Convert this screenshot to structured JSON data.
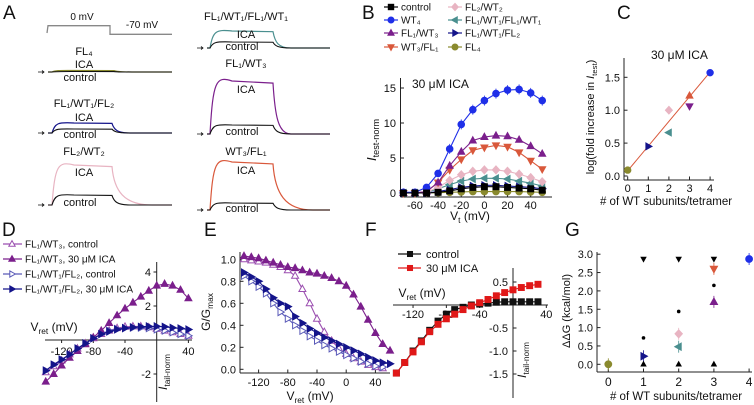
{
  "panel_labels": [
    "A",
    "B",
    "C",
    "D",
    "E",
    "F",
    "G"
  ],
  "chart_data": [
    {
      "panel": "A",
      "type": "traces",
      "protocol": {
        "step_label": "0 mV",
        "hold_label": "-70 mV"
      },
      "traces": [
        {
          "name": "FL₄",
          "ica_label": "ICA",
          "control_label": "control",
          "color": "#8a8a2e"
        },
        {
          "name": "FL₁/WT₁/FL₂",
          "ica_label": "ICA",
          "control_label": "control",
          "color": "#14148a"
        },
        {
          "name": "FL₂/WT₂",
          "ica_label": "ICA",
          "control_label": "control",
          "color": "#e8b4c2"
        },
        {
          "name": "FL₁/WT₁/FL₁/WT₁",
          "ica_label": "ICA",
          "control_label": "control",
          "color": "#4a8f8f"
        },
        {
          "name": "FL₁/WT₃",
          "ica_label": "ICA",
          "control_label": "control",
          "color": "#7b1f8c"
        },
        {
          "name": "WT₃/FL₁",
          "ica_label": "ICA",
          "control_label": "control",
          "color": "#d9583b"
        }
      ]
    },
    {
      "panel": "B",
      "type": "line",
      "annotation": "30 μM ICA",
      "xlabel": {
        "main": "V",
        "sub": "t",
        "unit": " (mV)"
      },
      "ylabel": {
        "main": "I",
        "sub": "test-norm"
      },
      "xlim": [
        -70,
        50
      ],
      "ylim": [
        0,
        16
      ],
      "xticks": [
        "-60",
        "-40",
        "-20",
        "0",
        "20",
        "40"
      ],
      "yticks": [
        "0",
        "5",
        "10",
        "15"
      ],
      "legend": "top-left, two columns",
      "x": [
        -70,
        -60,
        -50,
        -40,
        -30,
        -20,
        -10,
        0,
        10,
        20,
        30,
        40,
        50
      ],
      "series": [
        {
          "name": "control",
          "color": "#000000",
          "marker": "square",
          "values": [
            0,
            0,
            0,
            0.1,
            0.3,
            0.6,
            0.8,
            0.9,
            0.9,
            0.8,
            0.7,
            0.6,
            0.4
          ]
        },
        {
          "name": "WT₄",
          "color": "#1f2fe8",
          "marker": "circle",
          "values": [
            0.1,
            0.1,
            0.8,
            2.8,
            6.3,
            9.8,
            11.9,
            13.2,
            14.2,
            14.7,
            14.8,
            14.3,
            13.2
          ]
        },
        {
          "name": "FL₁/WT₃",
          "color": "#7b1f8c",
          "marker": "tri-up",
          "values": [
            0,
            0,
            0.2,
            1.5,
            3.9,
            5.9,
            7.5,
            8.0,
            8.2,
            8.1,
            7.6,
            6.7,
            5.6
          ]
        },
        {
          "name": "WT₃/FL₁",
          "color": "#d9583b",
          "marker": "tri-down",
          "values": [
            0,
            0,
            0.2,
            1.5,
            3.3,
            4.8,
            6.1,
            6.5,
            6.8,
            6.6,
            5.8,
            4.6,
            3.4
          ]
        },
        {
          "name": "FL₂/WT₂",
          "color": "#e8b4c2",
          "marker": "diamond",
          "values": [
            0,
            0,
            0.1,
            0.8,
            1.8,
            2.6,
            3.1,
            3.3,
            3.3,
            3.1,
            2.7,
            2.2,
            1.6
          ]
        },
        {
          "name": "FL₁/WT₁/FL₁/WT₁",
          "color": "#4a8f8f",
          "marker": "tri-left",
          "values": [
            0,
            0,
            0.1,
            0.6,
            1.2,
            1.7,
            2.0,
            2.1,
            2.1,
            2.0,
            1.7,
            1.4,
            1.0
          ]
        },
        {
          "name": "FL₁/WT₁/FL₂",
          "color": "#14148a",
          "marker": "tri-right",
          "values": [
            0,
            0,
            0,
            0.2,
            0.5,
            0.8,
            1.0,
            1.1,
            1.1,
            1.0,
            0.9,
            0.8,
            0.6
          ]
        },
        {
          "name": "FL₄",
          "color": "#8a8a2e",
          "marker": "circle",
          "values": [
            0,
            0,
            0,
            0.05,
            0.1,
            0.15,
            0.2,
            0.2,
            0.2,
            0.2,
            0.2,
            0.15,
            0.1
          ]
        }
      ]
    },
    {
      "panel": "C",
      "type": "scatter",
      "annotation": "30 μM ICA",
      "xlabel": "# of WT subunits/tetramer",
      "ylabel": {
        "pre": "log(fold increase in ",
        "main": "I",
        "sub": "test",
        "post": ")"
      },
      "xlim": [
        -0.2,
        4.2
      ],
      "ylim": [
        -0.05,
        1.8
      ],
      "xticks": [
        "0",
        "1",
        "2",
        "3",
        "4"
      ],
      "yticks": [
        "0.0",
        "0.5",
        "1.0",
        "1.5"
      ],
      "points": [
        {
          "x": 0,
          "y": 0.09,
          "color": "#8a8a2e",
          "marker": "circle"
        },
        {
          "x": 1,
          "y": 0.45,
          "color": "#14148a",
          "marker": "tri-right"
        },
        {
          "x": 2,
          "y": 1.0,
          "color": "#e8b4c2",
          "marker": "diamond"
        },
        {
          "x": 2,
          "y": 0.66,
          "color": "#4a8f8f",
          "marker": "tri-left"
        },
        {
          "x": 3,
          "y": 1.22,
          "color": "#d9583b",
          "marker": "tri-up"
        },
        {
          "x": 3,
          "y": 1.06,
          "color": "#7b1f8c",
          "marker": "tri-down"
        },
        {
          "x": 4,
          "y": 1.57,
          "color": "#1f2fe8",
          "marker": "circle"
        }
      ],
      "fit": {
        "x": [
          0,
          4
        ],
        "y": [
          0.08,
          1.58
        ],
        "color": "#d9583b"
      }
    },
    {
      "panel": "D",
      "type": "line",
      "xlabel": {
        "main": "V",
        "sub": "ret",
        "unit": " (mV)"
      },
      "ylabel": {
        "main": "I",
        "sub": "tail-norm"
      },
      "xlim": [
        -140,
        40
      ],
      "ylim": [
        -3,
        4.5
      ],
      "xticks": [
        "-120",
        "-80",
        "-40",
        "40"
      ],
      "yticks": [
        "4",
        "2",
        "-2"
      ],
      "legend": "top-left",
      "x": [
        -140,
        -130,
        -120,
        -110,
        -100,
        -90,
        -80,
        -70,
        -60,
        -50,
        -40,
        -30,
        -20,
        -10,
        0,
        10,
        20,
        30,
        40
      ],
      "series": [
        {
          "name": "FL₁/WT₃, control",
          "color": "#9b4fb0",
          "marker": "open-tri-up",
          "values": [
            -1.9,
            -1.55,
            -1.2,
            -0.85,
            -0.5,
            -0.2,
            0.1,
            0.35,
            0.55,
            0.7,
            0.78,
            0.8,
            0.8,
            0.75,
            0.65,
            0.55,
            0.45,
            0.35,
            0.25
          ]
        },
        {
          "name": "FL₁/WT₃, 30 μM ICA",
          "color": "#7b1f8c",
          "marker": "tri-up",
          "values": [
            -2.45,
            -2.0,
            -1.5,
            -1.05,
            -0.65,
            -0.25,
            0.15,
            0.55,
            1.0,
            1.45,
            1.85,
            2.2,
            2.55,
            2.9,
            3.2,
            3.3,
            3.2,
            2.95,
            2.45
          ]
        },
        {
          "name": "FL₁/WT₁/FL₂, control",
          "color": "#5a5ab8",
          "marker": "open-tri-right",
          "values": [
            -1.8,
            -1.45,
            -1.15,
            -0.85,
            -0.5,
            -0.2,
            0.1,
            0.35,
            0.55,
            0.65,
            0.7,
            0.72,
            0.72,
            0.7,
            0.62,
            0.55,
            0.45,
            0.35,
            0.25
          ]
        },
        {
          "name": "FL₁/WT₁/FL₂, 30 μM ICA",
          "color": "#14148a",
          "marker": "tri-right",
          "values": [
            -1.8,
            -1.45,
            -1.15,
            -0.85,
            -0.5,
            -0.2,
            0.1,
            0.35,
            0.5,
            0.62,
            0.7,
            0.75,
            0.78,
            0.8,
            0.8,
            0.78,
            0.72,
            0.68,
            0.62
          ]
        }
      ]
    },
    {
      "panel": "E",
      "type": "line",
      "xlabel": {
        "main": "V",
        "sub": "ret",
        "unit": " (mV)"
      },
      "ylabel": {
        "main": "G/G",
        "sub": "max"
      },
      "xlim": [
        -145,
        75
      ],
      "ylim": [
        -0.03,
        1.07
      ],
      "xticks": [
        "-120",
        "-80",
        "-40",
        "0",
        "40"
      ],
      "yticks": [
        "0.0",
        "0.2",
        "0.4",
        "0.6",
        "0.8",
        "1.0"
      ],
      "series": [
        {
          "color": "#9b4fb0",
          "marker": "open-tri-up",
          "x": [
            -140,
            -130,
            -120,
            -110,
            -100,
            -90,
            -80,
            -70,
            -60,
            -50,
            -40,
            -30,
            -20,
            -10,
            0,
            10,
            20,
            30,
            40,
            50
          ],
          "values": [
            1.0,
            0.99,
            0.98,
            0.97,
            0.95,
            0.93,
            0.9,
            0.85,
            0.73,
            0.6,
            0.46,
            0.34,
            0.26,
            0.19,
            0.14,
            0.1,
            0.07,
            0.04,
            0.02,
            0.01
          ]
        },
        {
          "color": "#7b1f8c",
          "marker": "tri-up",
          "x": [
            -140,
            -130,
            -120,
            -110,
            -100,
            -90,
            -80,
            -70,
            -60,
            -50,
            -40,
            -30,
            -20,
            -10,
            0,
            10,
            20,
            30,
            40,
            50,
            60
          ],
          "values": [
            1.03,
            1.02,
            1.01,
            0.99,
            0.97,
            0.95,
            0.93,
            0.92,
            0.9,
            0.88,
            0.87,
            0.85,
            0.83,
            0.8,
            0.76,
            0.68,
            0.57,
            0.45,
            0.33,
            0.23,
            0.17
          ]
        },
        {
          "color": "#5a5ab8",
          "marker": "open-tri-right",
          "x": [
            -140,
            -130,
            -120,
            -110,
            -100,
            -90,
            -80,
            -70,
            -60,
            -50,
            -40,
            -30,
            -20,
            -10,
            0,
            10,
            20,
            30,
            40,
            50
          ],
          "values": [
            0.85,
            0.8,
            0.75,
            0.69,
            0.6,
            0.52,
            0.46,
            0.4,
            0.35,
            0.3,
            0.26,
            0.22,
            0.19,
            0.16,
            0.13,
            0.1,
            0.07,
            0.05,
            0.03,
            0.02
          ]
        },
        {
          "color": "#14148a",
          "marker": "tri-right",
          "x": [
            -140,
            -130,
            -120,
            -110,
            -100,
            -90,
            -80,
            -70,
            -60,
            -50,
            -40,
            -30,
            -20,
            -10,
            0,
            10,
            20,
            30,
            40,
            50,
            60
          ],
          "values": [
            0.88,
            0.84,
            0.8,
            0.73,
            0.65,
            0.6,
            0.57,
            0.48,
            0.42,
            0.37,
            0.33,
            0.29,
            0.26,
            0.23,
            0.2,
            0.17,
            0.14,
            0.11,
            0.08,
            0.06,
            0.05
          ]
        }
      ]
    },
    {
      "panel": "F",
      "type": "line",
      "xlabel": {
        "main": "V",
        "sub": "ret",
        "unit": " (mV)"
      },
      "ylabel": {
        "main": "I",
        "sub": "tail-norm"
      },
      "xlim": [
        -140,
        40
      ],
      "ylim": [
        -1.9,
        0.8
      ],
      "xticks": [
        "-120",
        "-80",
        "-40",
        "40"
      ],
      "yticks": [
        "0.5",
        "-0.5",
        "-1.0",
        "-1.5"
      ],
      "legend": "top-left",
      "x": [
        -140,
        -130,
        -120,
        -110,
        -100,
        -90,
        -80,
        -70,
        -60,
        -50,
        -40,
        -30,
        -20,
        -10,
        0,
        10,
        20,
        30
      ],
      "series": [
        {
          "name": "control",
          "color": "#111111",
          "marker": "square",
          "values": [
            -1.48,
            -1.25,
            -1.0,
            -0.78,
            -0.55,
            -0.35,
            -0.2,
            -0.1,
            -0.05,
            0.0,
            0.02,
            0.04,
            0.06,
            0.07,
            0.07,
            0.07,
            0.07,
            0.07
          ]
        },
        {
          "name": "30 μM ICA",
          "color": "#e01818",
          "marker": "square",
          "values": [
            -1.48,
            -1.25,
            -1.02,
            -0.8,
            -0.58,
            -0.42,
            -0.3,
            -0.2,
            -0.1,
            -0.02,
            0.05,
            0.12,
            0.2,
            0.27,
            0.33,
            0.38,
            0.42,
            0.45
          ]
        }
      ]
    },
    {
      "panel": "G",
      "type": "scatter",
      "xlabel": "# of WT subunits/tetramer",
      "ylabel": "ΔΔG (kcal/mol)",
      "xlim": [
        -0.25,
        4.1
      ],
      "ylim": [
        -0.2,
        3.1
      ],
      "xticks": [
        "0",
        "1",
        "2",
        "3",
        "4"
      ],
      "yticks": [
        "0.0",
        "0.5",
        "1.0",
        "1.5",
        "2.0",
        "2.5",
        "3.0"
      ],
      "points": [
        {
          "x": 0,
          "y": 0.0,
          "color": "#8a8a2e",
          "marker": "circle"
        },
        {
          "x": 1,
          "y": 0.22,
          "color": "#14148a",
          "marker": "tri-right"
        },
        {
          "x": 2,
          "y": 0.83,
          "color": "#e8b4c2",
          "marker": "diamond"
        },
        {
          "x": 2,
          "y": 0.48,
          "color": "#4a8f8f",
          "marker": "tri-left"
        },
        {
          "x": 3,
          "y": 2.6,
          "color": "#d9583b",
          "marker": "tri-down"
        },
        {
          "x": 3,
          "y": 1.7,
          "color": "#7b1f8c",
          "marker": "tri-up"
        },
        {
          "x": 4,
          "y": 2.87,
          "color": "#1f2fe8",
          "marker": "circle"
        },
        {
          "x": 1,
          "y": 2.87,
          "color": "#000000",
          "marker": "small-tri-down"
        },
        {
          "x": 2,
          "y": 2.87,
          "color": "#000000",
          "marker": "small-tri-down"
        },
        {
          "x": 3,
          "y": 2.87,
          "color": "#000000",
          "marker": "small-tri-down"
        },
        {
          "x": 1,
          "y": 0.0,
          "color": "#000000",
          "marker": "small-tri-up"
        },
        {
          "x": 2,
          "y": 0.0,
          "color": "#000000",
          "marker": "small-tri-up"
        },
        {
          "x": 3,
          "y": 0.0,
          "color": "#000000",
          "marker": "small-tri-up"
        },
        {
          "x": 1,
          "y": 0.72,
          "color": "#000000",
          "marker": "dot"
        },
        {
          "x": 2,
          "y": 1.44,
          "color": "#000000",
          "marker": "dot"
        },
        {
          "x": 3,
          "y": 2.15,
          "color": "#000000",
          "marker": "dot"
        }
      ]
    }
  ]
}
